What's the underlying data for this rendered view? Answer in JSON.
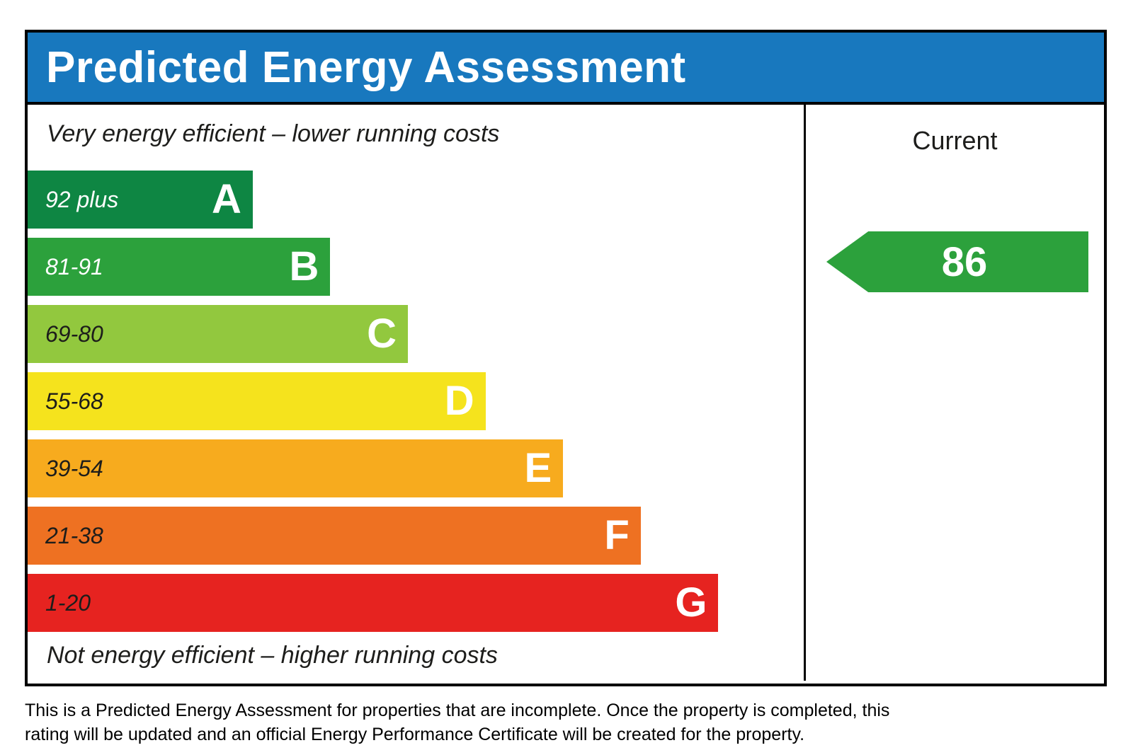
{
  "header": {
    "title": "Predicted Energy Assessment",
    "background_color": "#1878be"
  },
  "captions": {
    "top": "Very energy efficient – lower running costs",
    "bottom": "Not energy efficient – higher running costs"
  },
  "footer": {
    "text": "This is a Predicted Energy Assessment for properties that are incomplete. Once the property is completed, this rating will be updated and an official Energy Performance Certificate will be created for the property."
  },
  "chart_data": {
    "type": "bar",
    "title": "Predicted Energy Assessment",
    "orientation": "horizontal",
    "bands": [
      {
        "letter": "A",
        "range": "92 plus",
        "color": "#0e8643",
        "width_pct": 29,
        "range_color": "#ffffff"
      },
      {
        "letter": "B",
        "range": "81-91",
        "color": "#2ca13c",
        "width_pct": 39,
        "range_color": "#ffffff"
      },
      {
        "letter": "C",
        "range": "69-80",
        "color": "#92c83e",
        "width_pct": 49,
        "range_color": "#1d1d1b"
      },
      {
        "letter": "D",
        "range": "55-68",
        "color": "#f5e31d",
        "width_pct": 59,
        "range_color": "#1d1d1b"
      },
      {
        "letter": "E",
        "range": "39-54",
        "color": "#f7ab1e",
        "width_pct": 69,
        "range_color": "#1d1d1b"
      },
      {
        "letter": "F",
        "range": "21-38",
        "color": "#ee7122",
        "width_pct": 79,
        "range_color": "#1d1d1b"
      },
      {
        "letter": "G",
        "range": "1-20",
        "color": "#e62320",
        "width_pct": 89,
        "range_color": "#1d1d1b"
      }
    ],
    "current": {
      "label": "Current",
      "value": "86",
      "band": "B",
      "arrow_color": "#2ca13c"
    }
  }
}
